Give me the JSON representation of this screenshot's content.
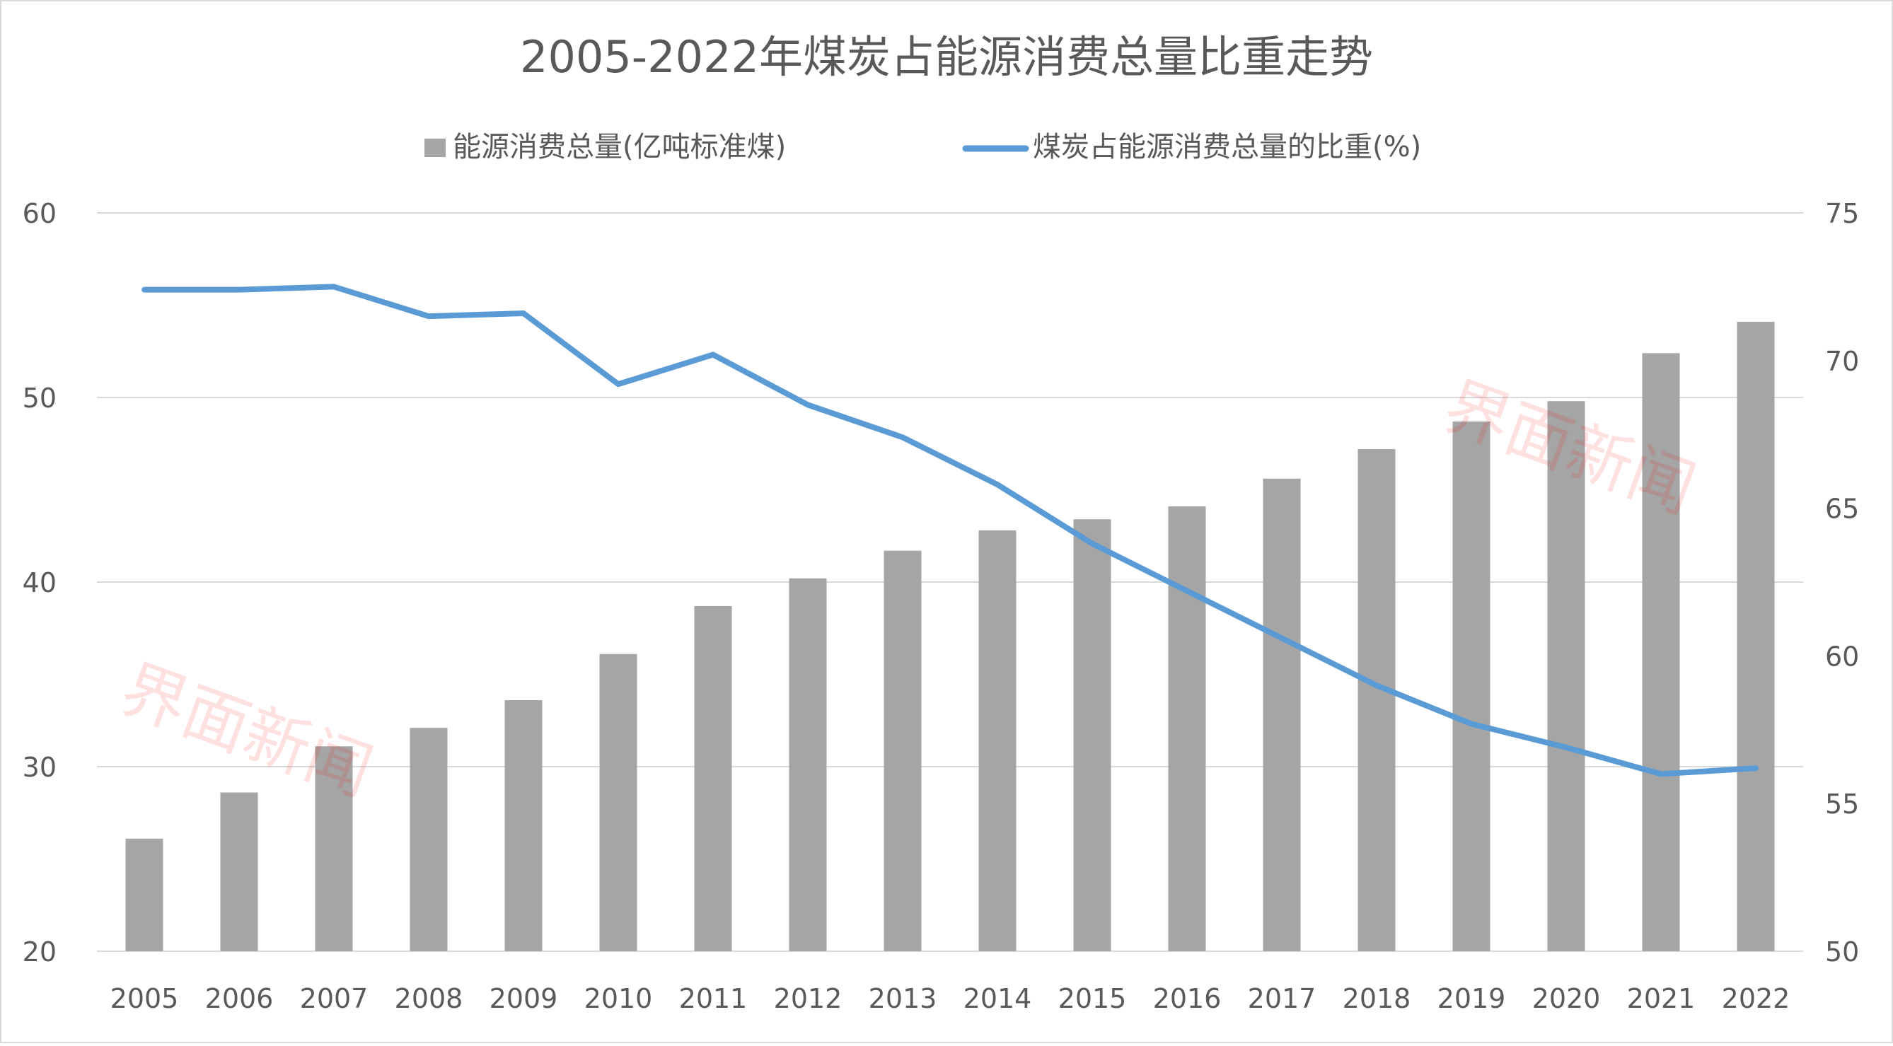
{
  "chart_data": {
    "type": "bar+line",
    "title": "2005-2022年煤炭占能源消费总量比重走势",
    "categories": [
      "2005",
      "2006",
      "2007",
      "2008",
      "2009",
      "2010",
      "2011",
      "2012",
      "2013",
      "2014",
      "2015",
      "2016",
      "2017",
      "2018",
      "2019",
      "2020",
      "2021",
      "2022"
    ],
    "series": [
      {
        "name": "能源消费总量(亿吨标准煤)",
        "type": "bar",
        "axis": "left",
        "color": "#A5A5A5",
        "values": [
          26.1,
          28.6,
          31.1,
          32.1,
          33.6,
          36.1,
          38.7,
          40.2,
          41.7,
          42.8,
          43.4,
          44.1,
          45.6,
          47.2,
          48.7,
          49.8,
          52.4,
          54.1
        ]
      },
      {
        "name": "煤炭占能源消费总量的比重(%)",
        "type": "line",
        "axis": "right",
        "color": "#5B9BD5",
        "values": [
          72.4,
          72.4,
          72.5,
          71.5,
          71.6,
          69.2,
          70.2,
          68.5,
          67.4,
          65.8,
          63.8,
          62.2,
          60.6,
          59.0,
          57.7,
          56.9,
          56.0,
          56.2
        ]
      }
    ],
    "y_left": {
      "ylim": [
        20,
        60
      ],
      "ticks": [
        20,
        30,
        40,
        50,
        60
      ]
    },
    "y_right": {
      "ylim": [
        50,
        75
      ],
      "ticks": [
        50,
        55,
        60,
        65,
        70,
        75
      ]
    },
    "grid": true,
    "legend": "top"
  },
  "watermark": "界面新闻"
}
